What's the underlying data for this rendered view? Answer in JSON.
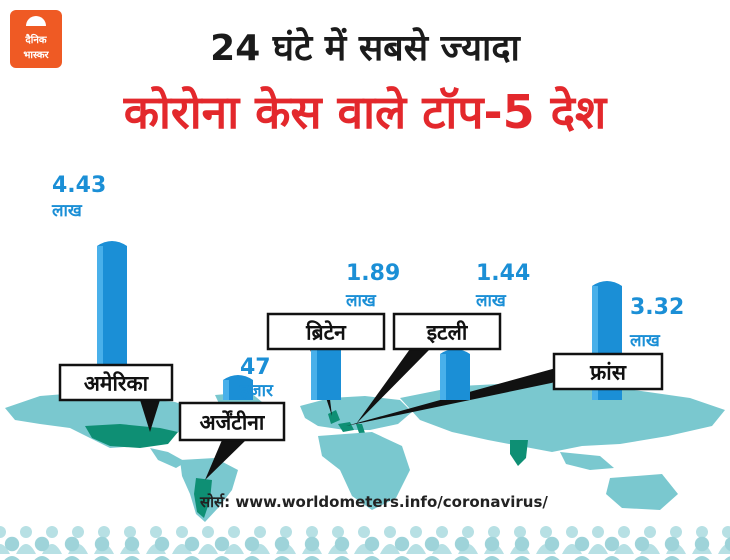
{
  "brand": {
    "line1": "दैनिक",
    "line2": "भास्कर",
    "color": "#ef5a24"
  },
  "title": {
    "line1": "24 घंटे में सबसे ज्यादा",
    "line2": "कोरोना केस वाले टॉप-5 देश"
  },
  "source": "सोर्स: www.worldometers.info/coronavirus/",
  "colors": {
    "bar": "#1b8fd6",
    "map": "#7ac8cf",
    "highlight": "#0e8f74",
    "title_red": "#e3282c",
    "crowd": "#9ed3d9"
  },
  "chart_data": {
    "type": "bar",
    "unit": "cases",
    "categories": [
      "अमेरिका",
      "अर्जेंटीना",
      "ब्रिटेन",
      "इटली",
      "फ्रांस"
    ],
    "values": [
      443000,
      47000,
      189000,
      144000,
      332000
    ],
    "labels": [
      {
        "value": "4.43",
        "unit": "लाख"
      },
      {
        "value": "47",
        "unit": "हजार"
      },
      {
        "value": "1.89",
        "unit": "लाख"
      },
      {
        "value": "1.44",
        "unit": "लाख"
      },
      {
        "value": "3.32",
        "unit": "लाख"
      }
    ]
  }
}
